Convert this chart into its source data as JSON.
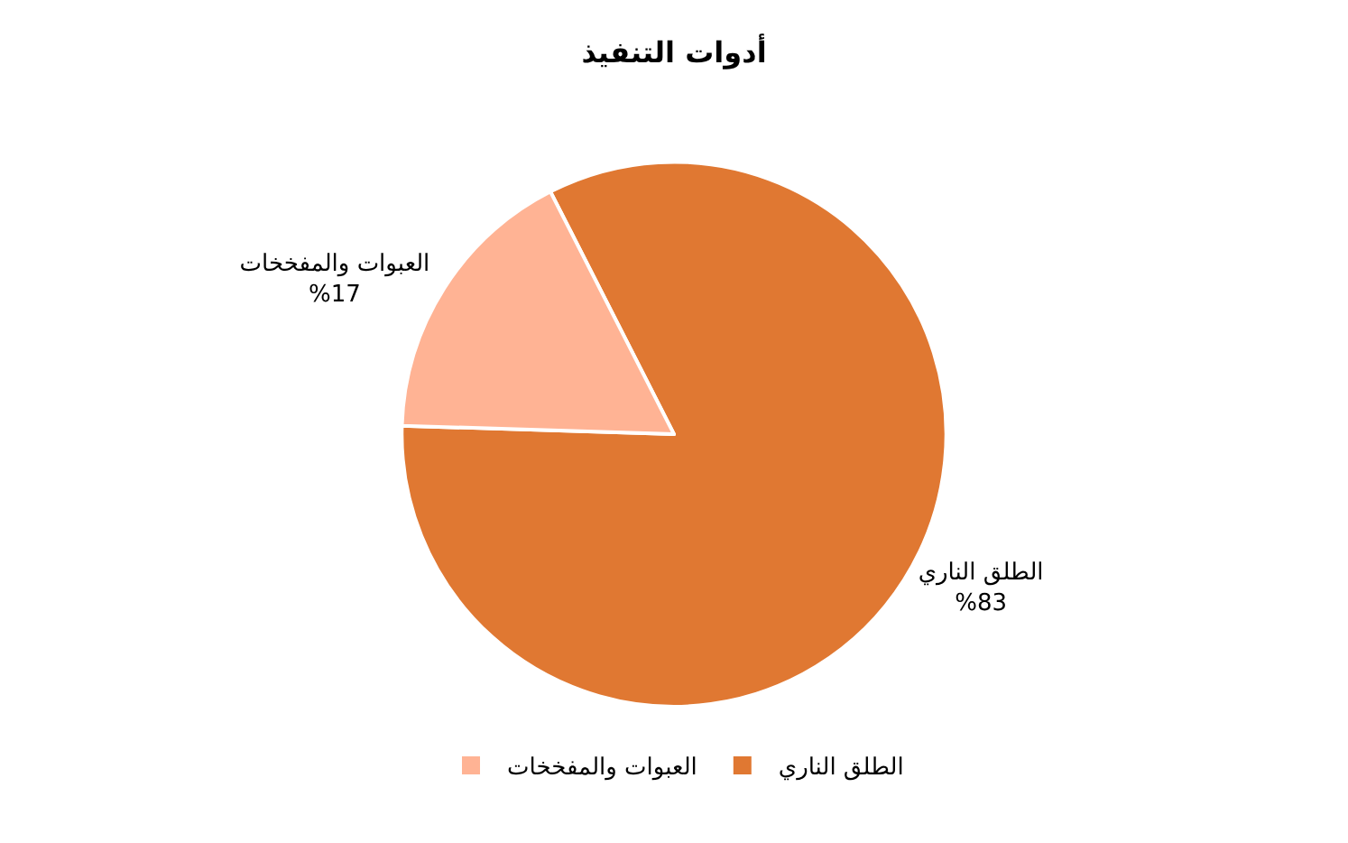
{
  "chart_data": {
    "type": "pie",
    "title": "أدوات التنفيذ",
    "categories": [
      "الطلق الناري",
      "العبوات والمفخخات"
    ],
    "values": [
      83,
      17
    ],
    "value_labels": [
      "%83",
      "%17"
    ],
    "colors": [
      "#e07832",
      "#ffb394"
    ],
    "legend": "bottom"
  }
}
